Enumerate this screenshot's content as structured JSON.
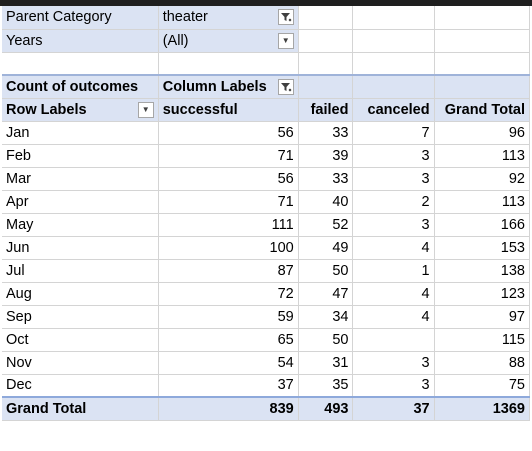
{
  "filters": [
    {
      "label": "Parent Category",
      "value": "theater",
      "icon": "filter-active-icon"
    },
    {
      "label": "Years",
      "value": "(All)",
      "icon": "chevron-down-icon"
    }
  ],
  "pivot": {
    "header1": {
      "a": "Count of outcomes",
      "b": "Column Labels"
    },
    "header2": {
      "row_labels": "Row Labels",
      "c1": "successful",
      "c2": "failed",
      "c3": "canceled",
      "c4": "Grand Total"
    },
    "rows": [
      {
        "label": "Jan",
        "successful": "56",
        "failed": "33",
        "canceled": "7",
        "total": "96"
      },
      {
        "label": "Feb",
        "successful": "71",
        "failed": "39",
        "canceled": "3",
        "total": "113"
      },
      {
        "label": "Mar",
        "successful": "56",
        "failed": "33",
        "canceled": "3",
        "total": "92"
      },
      {
        "label": "Apr",
        "successful": "71",
        "failed": "40",
        "canceled": "2",
        "total": "113"
      },
      {
        "label": "May",
        "successful": "111",
        "failed": "52",
        "canceled": "3",
        "total": "166"
      },
      {
        "label": "Jun",
        "successful": "100",
        "failed": "49",
        "canceled": "4",
        "total": "153"
      },
      {
        "label": "Jul",
        "successful": "87",
        "failed": "50",
        "canceled": "1",
        "total": "138"
      },
      {
        "label": "Aug",
        "successful": "72",
        "failed": "47",
        "canceled": "4",
        "total": "123"
      },
      {
        "label": "Sep",
        "successful": "59",
        "failed": "34",
        "canceled": "4",
        "total": "97"
      },
      {
        "label": "Oct",
        "successful": "65",
        "failed": "50",
        "canceled": "",
        "total": "115"
      },
      {
        "label": "Nov",
        "successful": "54",
        "failed": "31",
        "canceled": "3",
        "total": "88"
      },
      {
        "label": "Dec",
        "successful": "37",
        "failed": "35",
        "canceled": "3",
        "total": "75"
      }
    ],
    "grand_total": {
      "label": "Grand Total",
      "successful": "839",
      "failed": "493",
      "canceled": "37",
      "total": "1369"
    }
  },
  "colors": {
    "header_fill": "#dbe3f3",
    "grand_total_border": "#8ea9db"
  }
}
